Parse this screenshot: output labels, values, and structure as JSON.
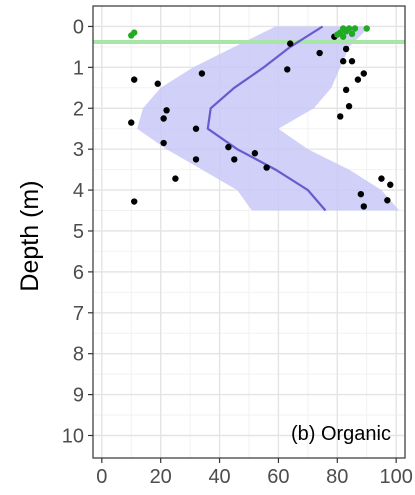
{
  "chart_data": {
    "type": "scatter",
    "ylabel": "Depth (m)",
    "xlabel": "",
    "panel_label": "(b) Organic",
    "xlim": [
      -3,
      103
    ],
    "ylim": [
      -0.5,
      10.55
    ],
    "y_reversed": true,
    "x_ticks": [
      "0",
      "20",
      "40",
      "60",
      "80",
      "100"
    ],
    "x_tick_values": [
      0,
      20,
      40,
      60,
      80,
      100
    ],
    "y_ticks": [
      "0",
      "1",
      "2",
      "3",
      "4",
      "5",
      "6",
      "7",
      "8",
      "9",
      "10"
    ],
    "y_tick_values": [
      0,
      1,
      2,
      3,
      4,
      5,
      6,
      7,
      8,
      9,
      10
    ],
    "grid": true,
    "colors": {
      "points": "#000000",
      "surface_points": "#22aa22",
      "surface_line": "#a8e6a8",
      "trend_line": "#6a5acd",
      "ribbon": "#c8c8f8",
      "panel_border": "#333333",
      "grid_major": "#e4e4e4",
      "grid_minor": "#f2f2f2"
    },
    "surface_line_depth": 0.38,
    "series": [
      {
        "kind": "points",
        "points": [
          {
            "x": 64,
            "y": 0.42
          },
          {
            "x": 74,
            "y": 0.65
          },
          {
            "x": 79,
            "y": 0.25
          },
          {
            "x": 83,
            "y": 0.55
          },
          {
            "x": 82,
            "y": 0.85
          },
          {
            "x": 85,
            "y": 0.85
          },
          {
            "x": 63,
            "y": 1.05
          },
          {
            "x": 89,
            "y": 1.15
          },
          {
            "x": 34,
            "y": 1.15
          },
          {
            "x": 87,
            "y": 1.3
          },
          {
            "x": 11,
            "y": 1.3
          },
          {
            "x": 19,
            "y": 1.4
          },
          {
            "x": 83,
            "y": 1.55
          },
          {
            "x": 84,
            "y": 1.95
          },
          {
            "x": 22,
            "y": 2.05
          },
          {
            "x": 21,
            "y": 2.25
          },
          {
            "x": 81,
            "y": 2.2
          },
          {
            "x": 10,
            "y": 2.35
          },
          {
            "x": 32,
            "y": 2.5
          },
          {
            "x": 21,
            "y": 2.85
          },
          {
            "x": 43,
            "y": 2.95
          },
          {
            "x": 52,
            "y": 3.1
          },
          {
            "x": 32,
            "y": 3.25
          },
          {
            "x": 45,
            "y": 3.25
          },
          {
            "x": 56,
            "y": 3.45
          },
          {
            "x": 25,
            "y": 3.72
          },
          {
            "x": 95,
            "y": 3.72
          },
          {
            "x": 98,
            "y": 3.87
          },
          {
            "x": 88,
            "y": 4.1
          },
          {
            "x": 97,
            "y": 4.25
          },
          {
            "x": 11,
            "y": 4.28
          },
          {
            "x": 89,
            "y": 4.4
          }
        ]
      },
      {
        "kind": "surface_points",
        "points": [
          {
            "x": 11,
            "y": 0.15
          },
          {
            "x": 10,
            "y": 0.22
          },
          {
            "x": 82,
            "y": 0.05
          },
          {
            "x": 84,
            "y": 0.05
          },
          {
            "x": 86,
            "y": 0.05
          },
          {
            "x": 90,
            "y": 0.05
          },
          {
            "x": 83,
            "y": 0.12
          },
          {
            "x": 81,
            "y": 0.15
          },
          {
            "x": 85,
            "y": 0.18
          },
          {
            "x": 80,
            "y": 0.2
          },
          {
            "x": 82,
            "y": 0.25
          }
        ]
      }
    ],
    "trend": {
      "y": [
        0.0,
        0.5,
        1.0,
        1.5,
        2.0,
        2.5,
        3.0,
        3.5,
        4.0,
        4.5
      ],
      "x": [
        75,
        64,
        55,
        45,
        37,
        36,
        46,
        59,
        70,
        76
      ],
      "low": [
        59,
        45,
        31,
        20,
        14,
        12,
        22,
        34,
        46,
        51
      ],
      "high": [
        91,
        84,
        81,
        78,
        72,
        60,
        70,
        84,
        95,
        101
      ]
    }
  }
}
